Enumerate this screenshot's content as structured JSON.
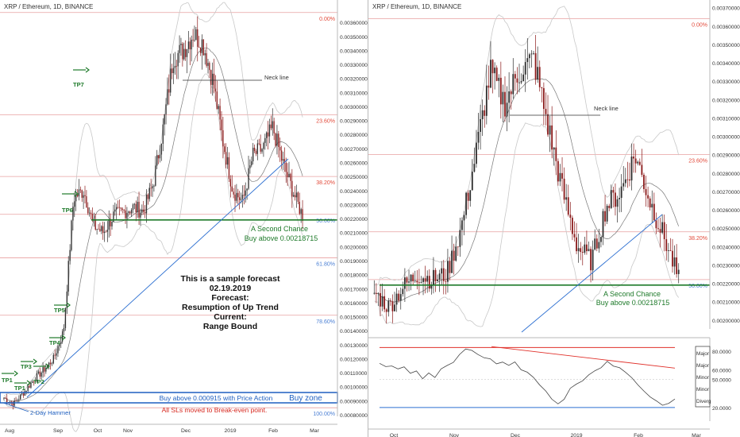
{
  "colors": {
    "up": "#2d2d2d",
    "down": "#8b1a1a",
    "fib_line": "#e8a0a0",
    "fib_label_red": "#e24a3a",
    "fib_label_blue": "#4a7fd4",
    "support": "#1e7a2a",
    "trendline": "#2c6fd1",
    "buy_zone": "#1e5fc0",
    "sl_text": "#d7281f",
    "neck": "#333333",
    "bands": "#c8c8c8",
    "ma": "#777777",
    "osc_line": "#444444",
    "osc_trend": "#e0302a",
    "osc_base": "#2c6fd1"
  },
  "left_chart": {
    "title": "XRP / Ethereum, 1D, BINANCE",
    "x_labels": [
      "Aug",
      "Sep",
      "Oct",
      "Nov",
      "Dec",
      "2019",
      "Feb",
      "Mar"
    ],
    "y_ticks": [
      "0.00360000",
      "0.00350000",
      "0.00340000",
      "0.00330000",
      "0.00320000",
      "0.00310000",
      "0.00300000",
      "0.00290000",
      "0.00280000",
      "0.00270000",
      "0.00260000",
      "0.00250000",
      "0.00240000",
      "0.00230000",
      "0.00220000",
      "0.00210000",
      "0.00200000",
      "0.00190000",
      "0.00180000",
      "0.00170000",
      "0.00160000",
      "0.00150000",
      "0.00140000",
      "0.00130000",
      "0.00120000",
      "0.00110000",
      "0.00100000",
      "0.00090000",
      "0.00080000"
    ],
    "fib_levels": [
      {
        "label": "0.00%",
        "value": 0.00367
      },
      {
        "label": "23.60%",
        "value": 0.00294
      },
      {
        "label": "38.20%",
        "value": 0.0025
      },
      {
        "label": "50.00%",
        "value": 0.00223
      },
      {
        "label": "61.80%",
        "value": 0.00192
      },
      {
        "label": "78.60%",
        "value": 0.00151
      },
      {
        "label": "100.00%",
        "value": 0.00085
      }
    ],
    "tp_labels": [
      "TP7",
      "TP6",
      "TP5",
      "TP4",
      "TP3",
      "TP2",
      "TP1",
      "TP1"
    ],
    "neck_label": "Neck line",
    "second_chance_line1": "A Second Chance",
    "second_chance_line2": "Buy above 0.00218715",
    "forecast_lines": [
      "This is a sample forecast",
      "02.19.2019",
      "Forecast:",
      "Resumption of Up Trend",
      "Current:",
      "Range Bound"
    ],
    "buy_text": "Buy above 0.000915 with Price Action",
    "buy_zone_label": "Buy  zone",
    "sl_text": "All SLs moved to Break-even point.",
    "hammer_label": "2-Day Hammer"
  },
  "right_chart": {
    "title": "XRP / Ethereum, 1D, BINANCE",
    "x_labels": [
      "Oct",
      "Nov",
      "Dec",
      "2019",
      "Feb",
      "Mar"
    ],
    "y_ticks": [
      "0.00370000",
      "0.00360000",
      "0.00350000",
      "0.00340000",
      "0.00330000",
      "0.00320000",
      "0.00310000",
      "0.00300000",
      "0.00290000",
      "0.00280000",
      "0.00270000",
      "0.00260000",
      "0.00250000",
      "0.00240000",
      "0.00230000",
      "0.00220000",
      "0.00210000",
      "0.00200000"
    ],
    "fib_levels": [
      {
        "label": "0.00%",
        "value": 0.00364
      },
      {
        "label": "23.60%",
        "value": 0.0029
      },
      {
        "label": "38.20%",
        "value": 0.00248
      },
      {
        "label": "50.00%",
        "value": 0.00222
      }
    ],
    "neck_label": "Neck line",
    "second_chance_line1": "A Second Chance",
    "second_chance_line2": "Buy above 0.00218715",
    "osc_ticks": [
      "80.0000",
      "60.0000",
      "50.0000",
      "20.0000"
    ],
    "osc_legend": [
      "Major",
      "Major",
      "Minor",
      "Minor",
      "Diverg"
    ]
  },
  "chart_data": [
    {
      "type": "line",
      "title": "XRP / Ethereum, 1D, BINANCE",
      "xlabel": "",
      "ylabel": "",
      "x": [
        "Jul 25",
        "Aug 1",
        "Aug 8",
        "Aug 15",
        "Aug 22",
        "Aug 29",
        "Sep 5",
        "Sep 12",
        "Sep 19",
        "Sep 26",
        "Oct 3",
        "Oct 10",
        "Oct 17",
        "Oct 24",
        "Oct 31",
        "Nov 7",
        "Nov 14",
        "Nov 21",
        "Nov 28",
        "Dec 5",
        "Dec 12",
        "Dec 19",
        "Dec 26",
        "Jan 2",
        "Jan 9",
        "Jan 16",
        "Jan 23",
        "Jan 30",
        "Feb 6",
        "Feb 13",
        "Feb 19"
      ],
      "series": [
        {
          "values": [
            0.00092,
            0.00088,
            0.00096,
            0.00105,
            0.00112,
            0.0012,
            0.0014,
            0.00235,
            0.0024,
            0.00215,
            0.0021,
            0.00222,
            0.00225,
            0.00228,
            0.00225,
            0.00245,
            0.00285,
            0.00335,
            0.0034,
            0.00352,
            0.00345,
            0.00318,
            0.00275,
            0.0024,
            0.00232,
            0.00265,
            0.0027,
            0.00285,
            0.0026,
            0.0024,
            0.00222
          ]
        }
      ],
      "ylim": [
        0.0008,
        0.00368
      ],
      "grid": false
    },
    {
      "type": "line",
      "title": "XRP / Ethereum, 1D, BINANCE",
      "xlabel": "",
      "ylabel": "",
      "x": [
        "Sep 25",
        "Oct 2",
        "Oct 9",
        "Oct 16",
        "Oct 23",
        "Oct 30",
        "Nov 6",
        "Nov 13",
        "Nov 20",
        "Nov 27",
        "Dec 4",
        "Dec 11",
        "Dec 18",
        "Dec 25",
        "Jan 1",
        "Jan 8",
        "Jan 15",
        "Jan 22",
        "Jan 29",
        "Feb 5",
        "Feb 12",
        "Feb 19"
      ],
      "series": [
        {
          "values": [
            0.00215,
            0.00207,
            0.00218,
            0.00225,
            0.00222,
            0.00225,
            0.0025,
            0.0029,
            0.00335,
            0.00318,
            0.00335,
            0.00342,
            0.00305,
            0.0027,
            0.0024,
            0.00232,
            0.00262,
            0.0027,
            0.0029,
            0.00265,
            0.00245,
            0.00222
          ]
        }
      ],
      "ylim": [
        0.00196,
        0.00372
      ],
      "grid": false
    }
  ]
}
